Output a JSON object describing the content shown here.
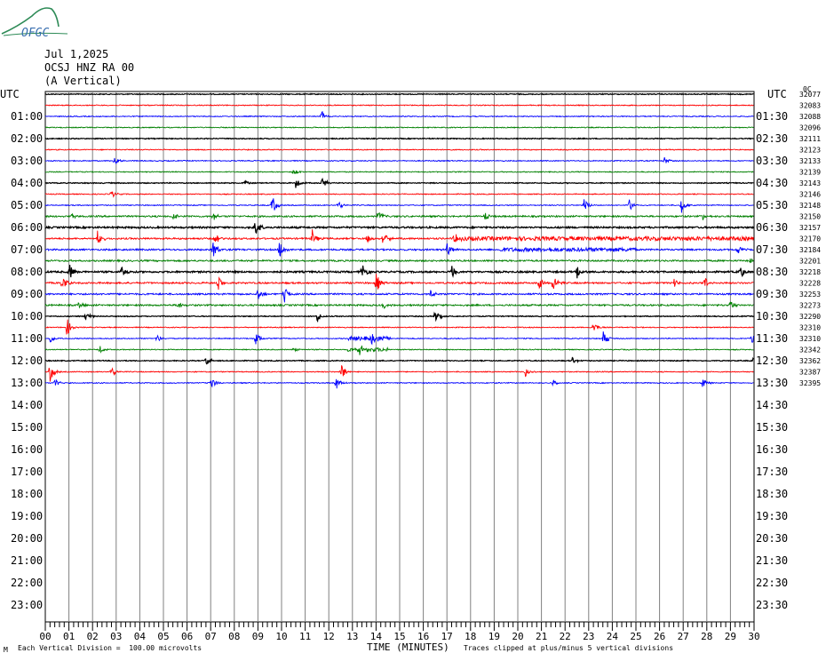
{
  "header": {
    "logo_text": "OFGC",
    "date": "Jul 1,2025",
    "station": "OCSJ HNZ RA 00",
    "component": "(A Vertical)"
  },
  "axes": {
    "left_title": "UTC",
    "right_title": "UTC",
    "x_title": "TIME (MINUTES)"
  },
  "footer": {
    "scale_note": "Each Vertical Division =  100.00 microvolts",
    "clip_note": "Traces clipped at plus/minus 5 vertical divisions",
    "corner_mark": "M"
  },
  "colors": {
    "trace_cycle": [
      "#000000",
      "#ff0000",
      "#0000ff",
      "#008000"
    ],
    "grid": "#808080"
  },
  "chart_data": {
    "type": "line",
    "title": "OCSJ HNZ RA 00 (A Vertical)",
    "xlabel": "TIME (MINUTES)",
    "xlim": [
      0,
      30
    ],
    "x_ticks": [
      "00",
      "01",
      "02",
      "03",
      "04",
      "05",
      "06",
      "07",
      "08",
      "09",
      "10",
      "11",
      "12",
      "13",
      "14",
      "15",
      "16",
      "17",
      "18",
      "19",
      "20",
      "21",
      "22",
      "23",
      "24",
      "25",
      "26",
      "27",
      "28",
      "29",
      "30"
    ],
    "left_row_labels": [
      "UTC",
      "01:00",
      "02:00",
      "03:00",
      "04:00",
      "05:00",
      "06:00",
      "07:00",
      "08:00",
      "09:00",
      "10:00",
      "11:00",
      "12:00",
      "13:00",
      "14:00",
      "15:00",
      "16:00",
      "17:00",
      "18:00",
      "19:00",
      "20:00",
      "21:00",
      "22:00",
      "23:00"
    ],
    "right_row_labels": [
      "UTC",
      "01:30",
      "02:30",
      "03:30",
      "04:30",
      "05:30",
      "06:30",
      "07:30",
      "08:30",
      "09:30",
      "10:30",
      "11:30",
      "12:30",
      "13:30",
      "14:30",
      "15:30",
      "16:30",
      "17:30",
      "18:30",
      "19:30",
      "20:30",
      "21:30",
      "22:30",
      "23:30"
    ],
    "trace_offsets": [
      "32077",
      "32083",
      "32088",
      "32096",
      "32111",
      "32123",
      "32133",
      "32139",
      "32143",
      "32146",
      "32148",
      "32150",
      "32157",
      "32170",
      "32184",
      "32201",
      "32218",
      "32228",
      "32253",
      "32273",
      "32290",
      "32310",
      "32310",
      "32342",
      "32362",
      "32387",
      "32395"
    ],
    "top_right_mark": "0C",
    "traces_recorded": 27,
    "events": [
      {
        "trace": 2,
        "minute": 11.7,
        "amp": 7
      },
      {
        "trace": 6,
        "minute": 2.9,
        "amp": 8
      },
      {
        "trace": 6,
        "minute": 26.2,
        "amp": 5
      },
      {
        "trace": 7,
        "minute": 10.5,
        "amp": 6
      },
      {
        "trace": 8,
        "minute": 10.6,
        "amp": 6
      },
      {
        "trace": 8,
        "minute": 11.7,
        "amp": 8
      },
      {
        "trace": 8,
        "minute": 8.4,
        "amp": 4
      },
      {
        "trace": 9,
        "minute": 2.8,
        "amp": 5
      },
      {
        "trace": 10,
        "minute": 9.6,
        "amp": 12
      },
      {
        "trace": 10,
        "minute": 12.4,
        "amp": 6
      },
      {
        "trace": 10,
        "minute": 22.8,
        "amp": 10
      },
      {
        "trace": 10,
        "minute": 24.7,
        "amp": 9
      },
      {
        "trace": 10,
        "minute": 26.9,
        "amp": 11
      },
      {
        "trace": 11,
        "minute": 1.1,
        "amp": 4
      },
      {
        "trace": 11,
        "minute": 5.4,
        "amp": 5
      },
      {
        "trace": 11,
        "minute": 7.1,
        "amp": 5
      },
      {
        "trace": 11,
        "minute": 14.1,
        "amp": 7
      },
      {
        "trace": 11,
        "minute": 18.6,
        "amp": 6
      },
      {
        "trace": 11,
        "minute": 27.8,
        "amp": 5
      },
      {
        "trace": 12,
        "minute": 8.9,
        "amp": 11
      },
      {
        "trace": 13,
        "minute": 2.2,
        "amp": 11
      },
      {
        "trace": 13,
        "minute": 7.2,
        "amp": 9
      },
      {
        "trace": 13,
        "minute": 11.3,
        "amp": 10
      },
      {
        "trace": 13,
        "minute": 13.6,
        "amp": 10
      },
      {
        "trace": 13,
        "minute": 14.3,
        "amp": 12
      },
      {
        "trace": 13,
        "minute": 17.3,
        "amp": 8
      },
      {
        "trace": 14,
        "minute": 7.1,
        "amp": 12
      },
      {
        "trace": 14,
        "minute": 9.9,
        "amp": 12
      },
      {
        "trace": 14,
        "minute": 17.0,
        "amp": 10
      },
      {
        "trace": 14,
        "minute": 29.3,
        "amp": 6
      },
      {
        "trace": 15,
        "minute": 29.8,
        "amp": 4
      },
      {
        "trace": 16,
        "minute": 1.0,
        "amp": 12
      },
      {
        "trace": 16,
        "minute": 3.2,
        "amp": 8
      },
      {
        "trace": 16,
        "minute": 13.4,
        "amp": 11
      },
      {
        "trace": 16,
        "minute": 17.2,
        "amp": 9
      },
      {
        "trace": 16,
        "minute": 22.5,
        "amp": 8
      },
      {
        "trace": 16,
        "minute": 29.4,
        "amp": 8
      },
      {
        "trace": 17,
        "minute": 0.7,
        "amp": 12
      },
      {
        "trace": 17,
        "minute": 7.3,
        "amp": 9
      },
      {
        "trace": 17,
        "minute": 14.0,
        "amp": 12
      },
      {
        "trace": 17,
        "minute": 20.9,
        "amp": 9
      },
      {
        "trace": 17,
        "minute": 21.5,
        "amp": 12
      },
      {
        "trace": 17,
        "minute": 26.6,
        "amp": 7
      },
      {
        "trace": 17,
        "minute": 27.9,
        "amp": 8
      },
      {
        "trace": 18,
        "minute": 9.0,
        "amp": 9
      },
      {
        "trace": 18,
        "minute": 10.1,
        "amp": 12
      },
      {
        "trace": 18,
        "minute": 16.3,
        "amp": 8
      },
      {
        "trace": 19,
        "minute": 1.4,
        "amp": 6
      },
      {
        "trace": 19,
        "minute": 5.6,
        "amp": 6
      },
      {
        "trace": 19,
        "minute": 14.3,
        "amp": 5
      },
      {
        "trace": 19,
        "minute": 29.0,
        "amp": 6
      },
      {
        "trace": 20,
        "minute": 1.7,
        "amp": 7
      },
      {
        "trace": 20,
        "minute": 11.5,
        "amp": 6
      },
      {
        "trace": 20,
        "minute": 16.5,
        "amp": 9
      },
      {
        "trace": 21,
        "minute": 0.9,
        "amp": 12
      },
      {
        "trace": 21,
        "minute": 23.2,
        "amp": 8
      },
      {
        "trace": 22,
        "minute": 0.2,
        "amp": 6
      },
      {
        "trace": 22,
        "minute": 4.7,
        "amp": 6
      },
      {
        "trace": 22,
        "minute": 8.9,
        "amp": 10
      },
      {
        "trace": 22,
        "minute": 13.8,
        "amp": 6
      },
      {
        "trace": 22,
        "minute": 23.6,
        "amp": 12
      },
      {
        "trace": 22,
        "minute": 29.9,
        "amp": 10
      },
      {
        "trace": 23,
        "minute": 2.3,
        "amp": 5
      },
      {
        "trace": 23,
        "minute": 10.5,
        "amp": 4
      },
      {
        "trace": 23,
        "minute": 13.3,
        "amp": 6
      },
      {
        "trace": 24,
        "minute": 6.8,
        "amp": 6
      },
      {
        "trace": 24,
        "minute": 22.3,
        "amp": 5
      },
      {
        "trace": 24,
        "minute": 30.0,
        "amp": 10
      },
      {
        "trace": 25,
        "minute": 0.2,
        "amp": 12
      },
      {
        "trace": 25,
        "minute": 2.8,
        "amp": 7
      },
      {
        "trace": 25,
        "minute": 12.5,
        "amp": 12
      },
      {
        "trace": 25,
        "minute": 20.3,
        "amp": 7
      },
      {
        "trace": 26,
        "minute": 0.4,
        "amp": 6
      },
      {
        "trace": 26,
        "minute": 7.0,
        "amp": 9
      },
      {
        "trace": 26,
        "minute": 12.3,
        "amp": 10
      },
      {
        "trace": 26,
        "minute": 21.5,
        "amp": 6
      },
      {
        "trace": 26,
        "minute": 27.8,
        "amp": 7
      }
    ],
    "noisy_spans": [
      {
        "trace": 14,
        "from": 19.2,
        "to": 25.0
      },
      {
        "trace": 13,
        "from": 17.5,
        "to": 30.0
      },
      {
        "trace": 22,
        "from": 12.8,
        "to": 14.6
      },
      {
        "trace": 23,
        "from": 12.8,
        "to": 14.5
      }
    ]
  }
}
